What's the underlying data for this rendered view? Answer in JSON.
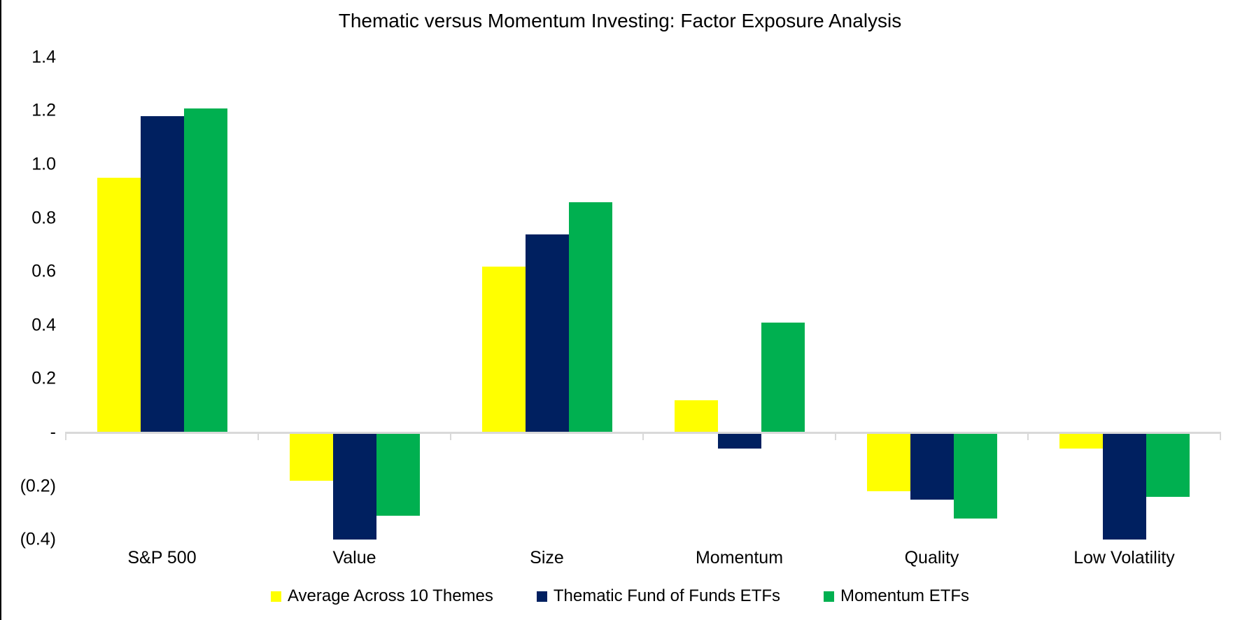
{
  "page": {
    "background_color": "#FFFFFF",
    "left_border_color": "#000000"
  },
  "chart_data": {
    "type": "bar",
    "title": "Thematic versus Momentum Investing: Factor Exposure Analysis",
    "xlabel": "",
    "ylabel": "",
    "categories": [
      "S&P 500",
      "Value",
      "Size",
      "Momentum",
      "Quality",
      "Low Volatility"
    ],
    "series": [
      {
        "name": "Average Across 10 Themes",
        "color": "#FFFF00",
        "values": [
          0.95,
          -0.18,
          0.62,
          0.12,
          -0.22,
          -0.06
        ]
      },
      {
        "name": "Thematic Fund of Funds ETFs",
        "color": "#002060",
        "values": [
          1.18,
          -0.4,
          0.74,
          -0.06,
          -0.25,
          -0.4
        ]
      },
      {
        "name": "Momentum ETFs",
        "color": "#00B050",
        "values": [
          1.21,
          -0.31,
          0.86,
          0.41,
          -0.32,
          -0.24
        ]
      }
    ],
    "y_ticks": [
      {
        "label": "1.4",
        "value": 1.4
      },
      {
        "label": "1.2",
        "value": 1.2
      },
      {
        "label": "1.0",
        "value": 1.0
      },
      {
        "label": "0.8",
        "value": 0.8
      },
      {
        "label": "0.6",
        "value": 0.6
      },
      {
        "label": "0.4",
        "value": 0.4
      },
      {
        "label": "0.2",
        "value": 0.2
      },
      {
        "label": "-",
        "value": 0.0
      },
      {
        "label": "(0.2)",
        "value": -0.2
      },
      {
        "label": "(0.4)",
        "value": -0.4
      }
    ],
    "ylim": [
      -0.4,
      1.4
    ],
    "grid": false,
    "legend_position": "bottom",
    "axis_color": "#D9D9D9",
    "text_color": "#000000"
  }
}
